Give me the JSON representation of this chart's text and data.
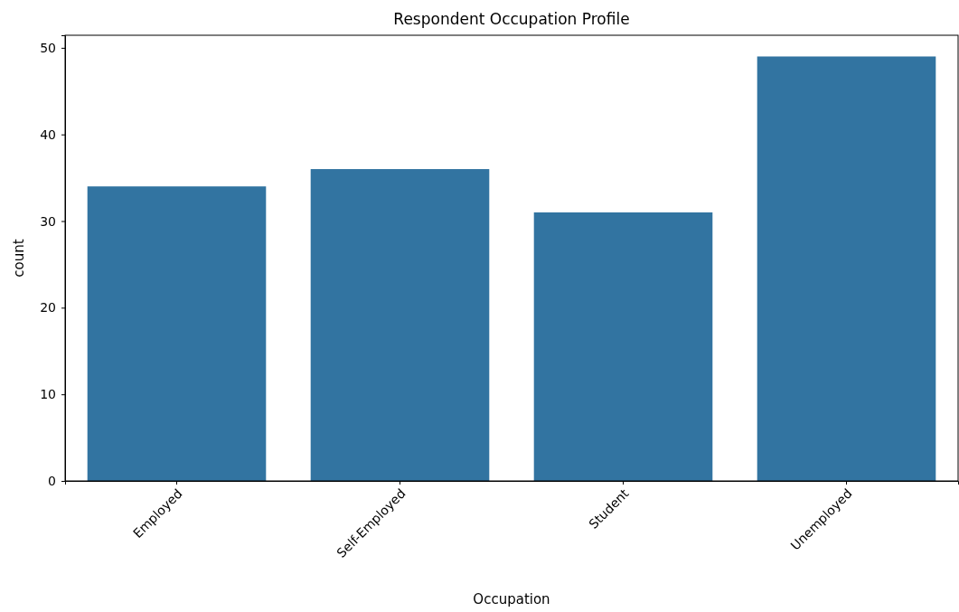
{
  "chart_data": {
    "type": "bar",
    "title": "Respondent Occupation Profile",
    "xlabel": "Occupation",
    "ylabel": "count",
    "categories": [
      "Employed",
      "Self-Employed",
      "Student",
      "Unemployed"
    ],
    "values": [
      34,
      36,
      31,
      49
    ],
    "color": "#3274a1",
    "ylim": [
      0,
      51.45
    ],
    "yticks": [
      0,
      10,
      20,
      30,
      40,
      50
    ],
    "grid": false
  }
}
